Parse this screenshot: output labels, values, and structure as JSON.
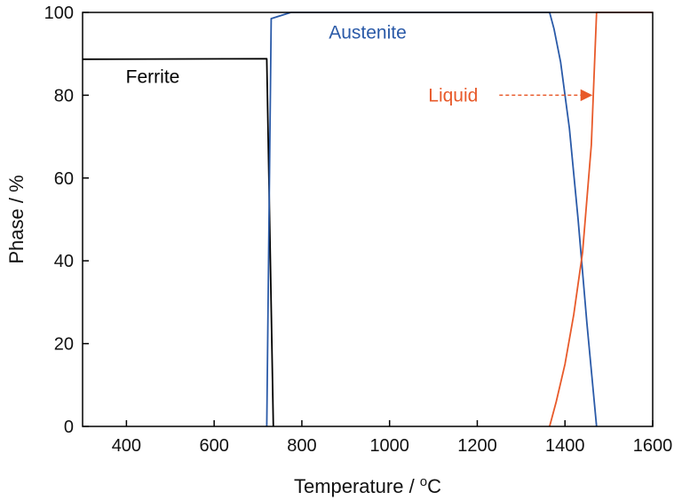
{
  "chart_data": {
    "type": "line",
    "xlabel_main": "Temperature / ",
    "xlabel_sup": "o",
    "xlabel_unit": "C",
    "ylabel": "Phase / %",
    "xlim": [
      300,
      1600
    ],
    "ylim": [
      0,
      100
    ],
    "x_ticks": [
      400,
      600,
      800,
      1000,
      1200,
      1400,
      1600
    ],
    "y_ticks": [
      0,
      20,
      40,
      60,
      80,
      100
    ],
    "grid": false,
    "series": [
      {
        "name": "Ferrite",
        "color": "#000000",
        "x": [
          300,
          720,
          735
        ],
        "y": [
          88.7,
          88.8,
          0
        ]
      },
      {
        "name": "Austenite",
        "color": "#2a5aa8",
        "x": [
          720,
          730,
          775,
          1365,
          1375,
          1390,
          1410,
          1430,
          1450,
          1465,
          1472
        ],
        "y": [
          0,
          98.5,
          100,
          100,
          96,
          88,
          72,
          50,
          25,
          8,
          0
        ]
      },
      {
        "name": "Liquid",
        "color": "#e85a2a",
        "x": [
          1365,
          1380,
          1400,
          1420,
          1440,
          1460,
          1472,
          1600
        ],
        "y": [
          0,
          6,
          15,
          27,
          42,
          68,
          100,
          100
        ]
      }
    ],
    "annotations": [
      {
        "text": "Ferrite",
        "series": "Ferrite",
        "x": 460,
        "y": 84.5
      },
      {
        "text": "Austenite",
        "series": "Austenite",
        "x": 950,
        "y": 95.2
      },
      {
        "text": "Liquid",
        "series": "Liquid",
        "x": 1145,
        "y": 80,
        "arrow_to_x": 1460,
        "arrow_to_y": 80
      }
    ]
  }
}
